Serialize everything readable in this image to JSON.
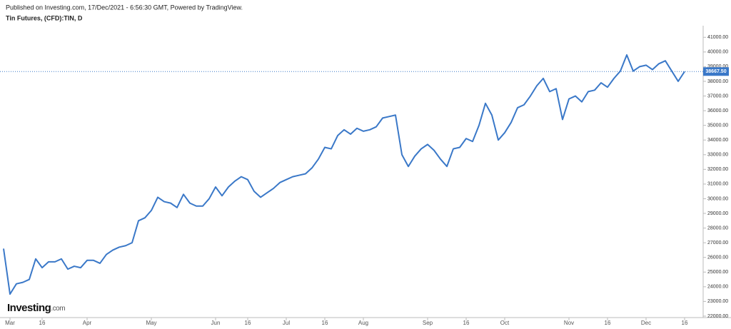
{
  "header": {
    "published": "Published on Investing.com, 17/Dec/2021 - 6:56:30 GMT, Powered by TradingView.",
    "symbol": "Tin Futures, (CFD):TIN, D"
  },
  "logo": {
    "name": "Investing",
    "suffix": ".com"
  },
  "chart_data": {
    "type": "line",
    "categories": [
      null,
      "Mar",
      null,
      null,
      null,
      null,
      "16",
      null,
      null,
      null,
      null,
      null,
      null,
      "Apr",
      null,
      null,
      null,
      null,
      null,
      null,
      null,
      null,
      null,
      "May",
      null,
      null,
      null,
      null,
      null,
      null,
      null,
      null,
      null,
      "Jun",
      null,
      null,
      null,
      null,
      "16",
      null,
      null,
      null,
      null,
      null,
      "Jul",
      null,
      null,
      null,
      null,
      null,
      "16",
      null,
      null,
      null,
      null,
      null,
      "Aug",
      null,
      null,
      null,
      null,
      null,
      null,
      null,
      null,
      null,
      "Sep",
      null,
      null,
      null,
      null,
      null,
      "16",
      null,
      null,
      null,
      null,
      null,
      "Oct",
      null,
      null,
      null,
      null,
      null,
      null,
      null,
      null,
      null,
      "Nov",
      null,
      null,
      null,
      null,
      null,
      "16",
      null,
      null,
      null,
      null,
      null,
      "Dec",
      null,
      null,
      null,
      null,
      null,
      "16"
    ],
    "series": [
      {
        "name": "TIN",
        "color": "#3a78c8",
        "values": [
          26600,
          23500,
          24200,
          24300,
          24500,
          25900,
          25300,
          25700,
          25700,
          25900,
          25200,
          25400,
          25300,
          25800,
          25800,
          25600,
          26200,
          26500,
          26700,
          26800,
          27000,
          28500,
          28700,
          29200,
          30100,
          29800,
          29700,
          29400,
          30300,
          29700,
          29500,
          29500,
          30000,
          30800,
          30200,
          30800,
          31200,
          31500,
          31300,
          30500,
          30100,
          30400,
          30700,
          31100,
          31300,
          31500,
          31600,
          31700,
          32100,
          32700,
          33500,
          33400,
          34300,
          34700,
          34400,
          34800,
          34600,
          34700,
          34900,
          35500,
          35600,
          35700,
          33000,
          32200,
          32900,
          33400,
          33700,
          33300,
          32700,
          32200,
          33400,
          33500,
          34100,
          33900,
          35000,
          36500,
          35700,
          34000,
          34500,
          35200,
          36200,
          36400,
          37000,
          37700,
          38200,
          37300,
          37500,
          35400,
          36800,
          37000,
          36600,
          37300,
          37400,
          37900,
          37600,
          38200,
          38700,
          39800,
          38700,
          39000,
          39100,
          38800,
          39200,
          39400,
          38700,
          38000,
          38667.5
        ]
      }
    ],
    "ylim": [
      21900,
      41500
    ],
    "yticks": [
      {
        "value": 22000,
        "label": "22000.00"
      },
      {
        "value": 23000,
        "label": "23000.00"
      },
      {
        "value": 24000,
        "label": "24000.00"
      },
      {
        "value": 25000,
        "label": "25000.00"
      },
      {
        "value": 26000,
        "label": "26000.00"
      },
      {
        "value": 27000,
        "label": "27000.00"
      },
      {
        "value": 28000,
        "label": "28000.00"
      },
      {
        "value": 29000,
        "label": "29000.00"
      },
      {
        "value": 30000,
        "label": "30000.00"
      },
      {
        "value": 31000,
        "label": "31000.00"
      },
      {
        "value": 32000,
        "label": "32000.00"
      },
      {
        "value": 33000,
        "label": "33000.00"
      },
      {
        "value": 34000,
        "label": "34000.00"
      },
      {
        "value": 35000,
        "label": "35000.00"
      },
      {
        "value": 36000,
        "label": "36000.00"
      },
      {
        "value": 37000,
        "label": "37000.00"
      },
      {
        "value": 38000,
        "label": "38000.00"
      },
      {
        "value": 39000,
        "label": "39000.00"
      },
      {
        "value": 40000,
        "label": "40000.00"
      },
      {
        "value": 41000,
        "label": "41000.00"
      }
    ],
    "price_line": {
      "value": 38667.5,
      "label": "38667.50",
      "color": "#3a78c8"
    },
    "grid": false
  }
}
